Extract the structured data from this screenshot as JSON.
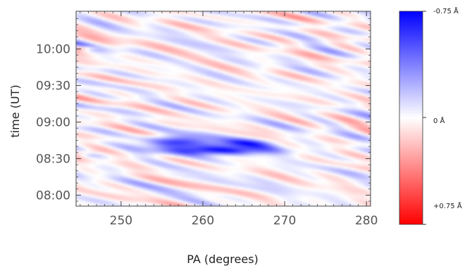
{
  "chart_data": {
    "type": "heatmap",
    "title": "",
    "xlabel": "PA (degrees)",
    "ylabel": "time (UT)",
    "xlim": [
      244.5,
      280.5
    ],
    "x_ticks": [
      250,
      260,
      270,
      280
    ],
    "x_tick_labels": [
      "250",
      "260",
      "270",
      "280"
    ],
    "ylim_minutes_ut": [
      471,
      631
    ],
    "y_ticks_minutes_ut": [
      480,
      510,
      540,
      570,
      600
    ],
    "y_tick_labels": [
      "08:00",
      "08:30",
      "09:00",
      "09:30",
      "10:00"
    ],
    "value_units": "Å",
    "value_range": [
      -0.75,
      0.75
    ],
    "colormap": {
      "type": "red-white-blue diverging",
      "negative_color": "#0000ff",
      "zero_color": "#ffffff",
      "positive_color": "#ff0000"
    },
    "colorbar_labels": [
      "-0.75 Å",
      "0 Å",
      "+0.75 Å"
    ],
    "features": [
      {
        "pa_range": [
          254,
          260
        ],
        "time_range": [
          "08:40",
          "08:48"
        ],
        "peak_value": -0.6
      },
      {
        "pa_range": [
          257,
          267
        ],
        "time_range": [
          "08:34",
          "08:40"
        ],
        "peak_value": -0.7
      },
      {
        "pa_range": [
          262,
          268
        ],
        "time_range": [
          "08:40",
          "08:46"
        ],
        "peak_value": -0.45
      },
      {
        "pa_range": [
          244.5,
          246
        ],
        "time_range": [
          "10:00",
          "10:02"
        ],
        "peak_value": 0.35
      },
      {
        "pa_range": [
          244.5,
          246
        ],
        "time_range": [
          "08:34",
          "08:37"
        ],
        "peak_value": 0.3
      }
    ],
    "background": "noisy low-amplitude fluctuations around 0 Å"
  }
}
